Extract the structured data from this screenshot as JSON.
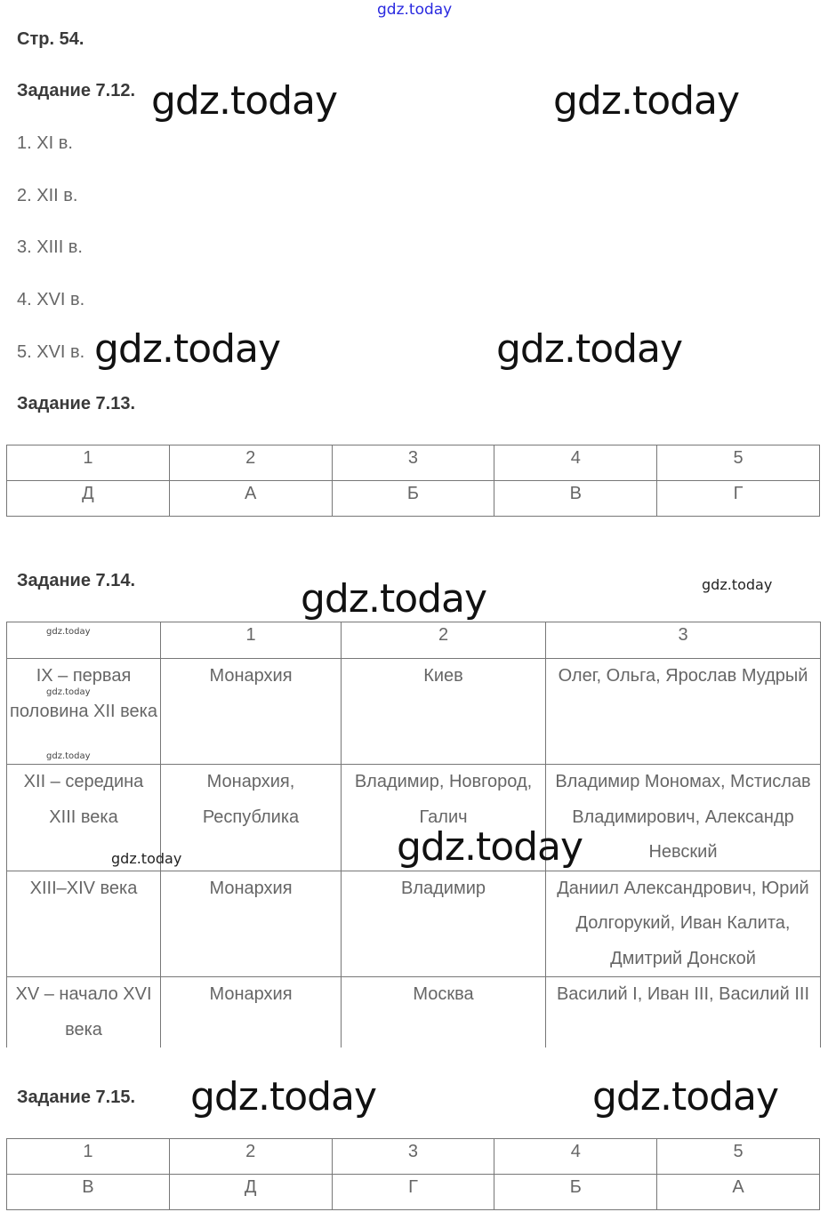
{
  "watermark": "gdz.today",
  "page_label": "Стр. 54.",
  "task_712": {
    "title": "Задание 7.12.",
    "items": [
      "1. XI в.",
      "2. XII в.",
      "3. XIII в.",
      "4. XVI в.",
      "5. XVI в."
    ]
  },
  "task_713": {
    "title": "Задание 7.13.",
    "headers": [
      "1",
      "2",
      "3",
      "4",
      "5"
    ],
    "values": [
      "Д",
      "А",
      "Б",
      "В",
      "Г"
    ]
  },
  "task_714": {
    "title": "Задание 7.14.",
    "headers": [
      "",
      "1",
      "2",
      "3"
    ],
    "rows": [
      [
        "IX – первая половина XII века",
        "Монархия",
        "Киев",
        "Олег, Ольга, Ярослав Мудрый"
      ],
      [
        "XII – середина XIII века",
        "Монархия, Республика",
        "Владимир, Новгород, Галич",
        "Владимир Мономах, Мстислав Владимирович, Александр Невский"
      ],
      [
        "XIII–XIV века",
        "Монархия",
        "Владимир",
        "Даниил Александрович, Юрий Долгорукий, Иван Калита, Дмитрий Донской"
      ],
      [
        "XV – начало XVI века",
        "Монархия",
        "Москва",
        "Василий I, Иван III, Василий III"
      ]
    ]
  },
  "task_715": {
    "title": "Задание 7.15.",
    "headers": [
      "1",
      "2",
      "3",
      "4",
      "5"
    ],
    "values": [
      "В",
      "Д",
      "Г",
      "Б",
      "А"
    ]
  },
  "colors": {
    "text": "#666666",
    "heading": "#3a3a3a",
    "top_watermark": "#2a2ae0",
    "border": "#777777"
  }
}
